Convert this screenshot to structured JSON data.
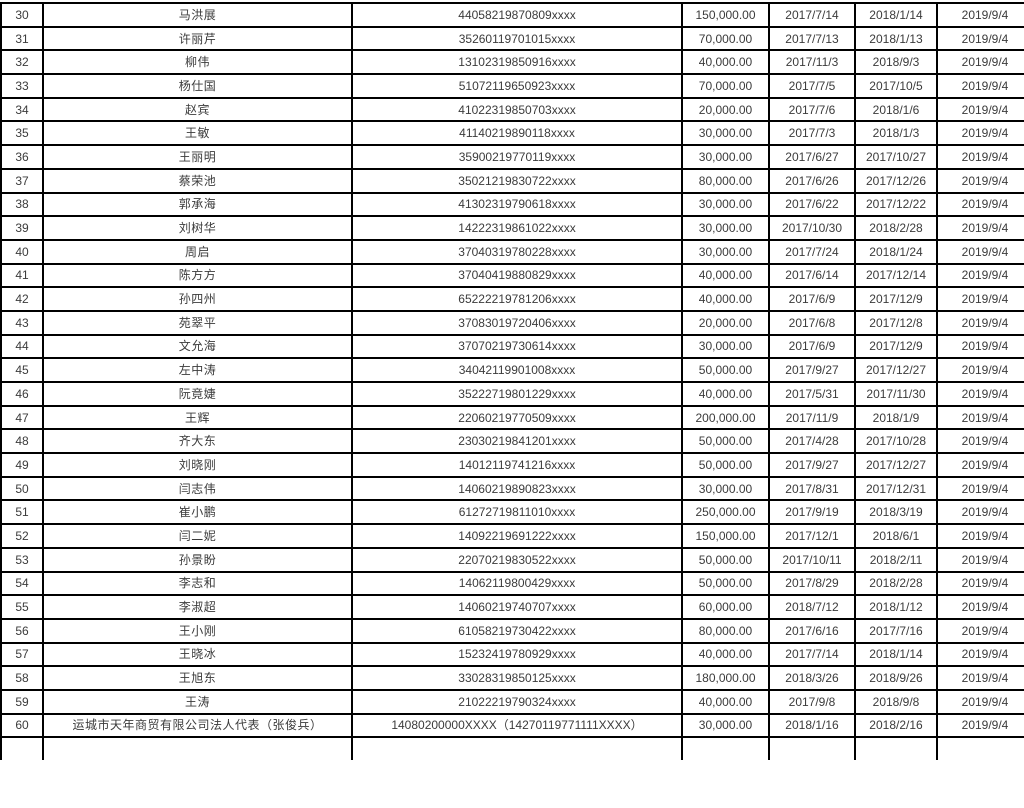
{
  "table": {
    "rows": [
      {
        "num": "30",
        "name": "马洪展",
        "id": "44058219870809xxxx",
        "amount": "150,000.00",
        "date1": "2017/7/14",
        "date2": "2018/1/14",
        "date3": "2019/9/4"
      },
      {
        "num": "31",
        "name": "许丽芹",
        "id": "35260119701015xxxx",
        "amount": "70,000.00",
        "date1": "2017/7/13",
        "date2": "2018/1/13",
        "date3": "2019/9/4"
      },
      {
        "num": "32",
        "name": "柳伟",
        "id": "13102319850916xxxx",
        "amount": "40,000.00",
        "date1": "2017/11/3",
        "date2": "2018/9/3",
        "date3": "2019/9/4"
      },
      {
        "num": "33",
        "name": "杨仕国",
        "id": "51072119650923xxxx",
        "amount": "70,000.00",
        "date1": "2017/7/5",
        "date2": "2017/10/5",
        "date3": "2019/9/4"
      },
      {
        "num": "34",
        "name": "赵宾",
        "id": "41022319850703xxxx",
        "amount": "20,000.00",
        "date1": "2017/7/6",
        "date2": "2018/1/6",
        "date3": "2019/9/4"
      },
      {
        "num": "35",
        "name": "王敏",
        "id": "41140219890118xxxx",
        "amount": "30,000.00",
        "date1": "2017/7/3",
        "date2": "2018/1/3",
        "date3": "2019/9/4"
      },
      {
        "num": "36",
        "name": "王丽明",
        "id": "35900219770119xxxx",
        "amount": "30,000.00",
        "date1": "2017/6/27",
        "date2": "2017/10/27",
        "date3": "2019/9/4"
      },
      {
        "num": "37",
        "name": "蔡荣池",
        "id": "35021219830722xxxx",
        "amount": "80,000.00",
        "date1": "2017/6/26",
        "date2": "2017/12/26",
        "date3": "2019/9/4"
      },
      {
        "num": "38",
        "name": "郭承海",
        "id": "41302319790618xxxx",
        "amount": "30,000.00",
        "date1": "2017/6/22",
        "date2": "2017/12/22",
        "date3": "2019/9/4"
      },
      {
        "num": "39",
        "name": "刘树华",
        "id": "14222319861022xxxx",
        "amount": "30,000.00",
        "date1": "2017/10/30",
        "date2": "2018/2/28",
        "date3": "2019/9/4"
      },
      {
        "num": "40",
        "name": "周启",
        "id": "37040319780228xxxx",
        "amount": "30,000.00",
        "date1": "2017/7/24",
        "date2": "2018/1/24",
        "date3": "2019/9/4"
      },
      {
        "num": "41",
        "name": "陈方方",
        "id": "37040419880829xxxx",
        "amount": "40,000.00",
        "date1": "2017/6/14",
        "date2": "2017/12/14",
        "date3": "2019/9/4"
      },
      {
        "num": "42",
        "name": "孙四州",
        "id": "65222219781206xxxx",
        "amount": "40,000.00",
        "date1": "2017/6/9",
        "date2": "2017/12/9",
        "date3": "2019/9/4"
      },
      {
        "num": "43",
        "name": "苑翠平",
        "id": "37083019720406xxxx",
        "amount": "20,000.00",
        "date1": "2017/6/8",
        "date2": "2017/12/8",
        "date3": "2019/9/4"
      },
      {
        "num": "44",
        "name": "文允海",
        "id": "37070219730614xxxx",
        "amount": "30,000.00",
        "date1": "2017/6/9",
        "date2": "2017/12/9",
        "date3": "2019/9/4"
      },
      {
        "num": "45",
        "name": "左中涛",
        "id": "34042119901008xxxx",
        "amount": "50,000.00",
        "date1": "2017/9/27",
        "date2": "2017/12/27",
        "date3": "2019/9/4"
      },
      {
        "num": "46",
        "name": "阮竟婕",
        "id": "35222719801229xxxx",
        "amount": "40,000.00",
        "date1": "2017/5/31",
        "date2": "2017/11/30",
        "date3": "2019/9/4"
      },
      {
        "num": "47",
        "name": "王辉",
        "id": "22060219770509xxxx",
        "amount": "200,000.00",
        "date1": "2017/11/9",
        "date2": "2018/1/9",
        "date3": "2019/9/4"
      },
      {
        "num": "48",
        "name": "齐大东",
        "id": "23030219841201xxxx",
        "amount": "50,000.00",
        "date1": "2017/4/28",
        "date2": "2017/10/28",
        "date3": "2019/9/4"
      },
      {
        "num": "49",
        "name": "刘晓刚",
        "id": "14012119741216xxxx",
        "amount": "50,000.00",
        "date1": "2017/9/27",
        "date2": "2017/12/27",
        "date3": "2019/9/4"
      },
      {
        "num": "50",
        "name": "闫志伟",
        "id": "14060219890823xxxx",
        "amount": "30,000.00",
        "date1": "2017/8/31",
        "date2": "2017/12/31",
        "date3": "2019/9/4"
      },
      {
        "num": "51",
        "name": "崔小鹏",
        "id": "61272719811010xxxx",
        "amount": "250,000.00",
        "date1": "2017/9/19",
        "date2": "2018/3/19",
        "date3": "2019/9/4"
      },
      {
        "num": "52",
        "name": "闫二妮",
        "id": "14092219691222xxxx",
        "amount": "150,000.00",
        "date1": "2017/12/1",
        "date2": "2018/6/1",
        "date3": "2019/9/4"
      },
      {
        "num": "53",
        "name": "孙景盼",
        "id": "22070219830522xxxx",
        "amount": "50,000.00",
        "date1": "2017/10/11",
        "date2": "2018/2/11",
        "date3": "2019/9/4"
      },
      {
        "num": "54",
        "name": "李志和",
        "id": "14062119800429xxxx",
        "amount": "50,000.00",
        "date1": "2017/8/29",
        "date2": "2018/2/28",
        "date3": "2019/9/4"
      },
      {
        "num": "55",
        "name": "李淑超",
        "id": "14060219740707xxxx",
        "amount": "60,000.00",
        "date1": "2018/7/12",
        "date2": "2018/1/12",
        "date3": "2019/9/4"
      },
      {
        "num": "56",
        "name": "王小刚",
        "id": "61058219730422xxxx",
        "amount": "80,000.00",
        "date1": "2017/6/16",
        "date2": "2017/7/16",
        "date3": "2019/9/4"
      },
      {
        "num": "57",
        "name": "王晓冰",
        "id": "15232419780929xxxx",
        "amount": "40,000.00",
        "date1": "2017/7/14",
        "date2": "2018/1/14",
        "date3": "2019/9/4"
      },
      {
        "num": "58",
        "name": "王旭东",
        "id": "33028319850125xxxx",
        "amount": "180,000.00",
        "date1": "2018/3/26",
        "date2": "2018/9/26",
        "date3": "2019/9/4"
      },
      {
        "num": "59",
        "name": "王涛",
        "id": "21022219790324xxxx",
        "amount": "40,000.00",
        "date1": "2017/9/8",
        "date2": "2018/9/8",
        "date3": "2019/9/4"
      },
      {
        "num": "60",
        "name": "运城市天年商贸有限公司法人代表（张俊兵）",
        "id": "14080200000XXXX（14270119771111XXXX）",
        "amount": "30,000.00",
        "date1": "2018/1/16",
        "date2": "2018/2/16",
        "date3": "2019/9/4"
      }
    ]
  },
  "colors": {
    "border": "#000000",
    "text": "#3b3b3b",
    "background": "#ffffff"
  }
}
